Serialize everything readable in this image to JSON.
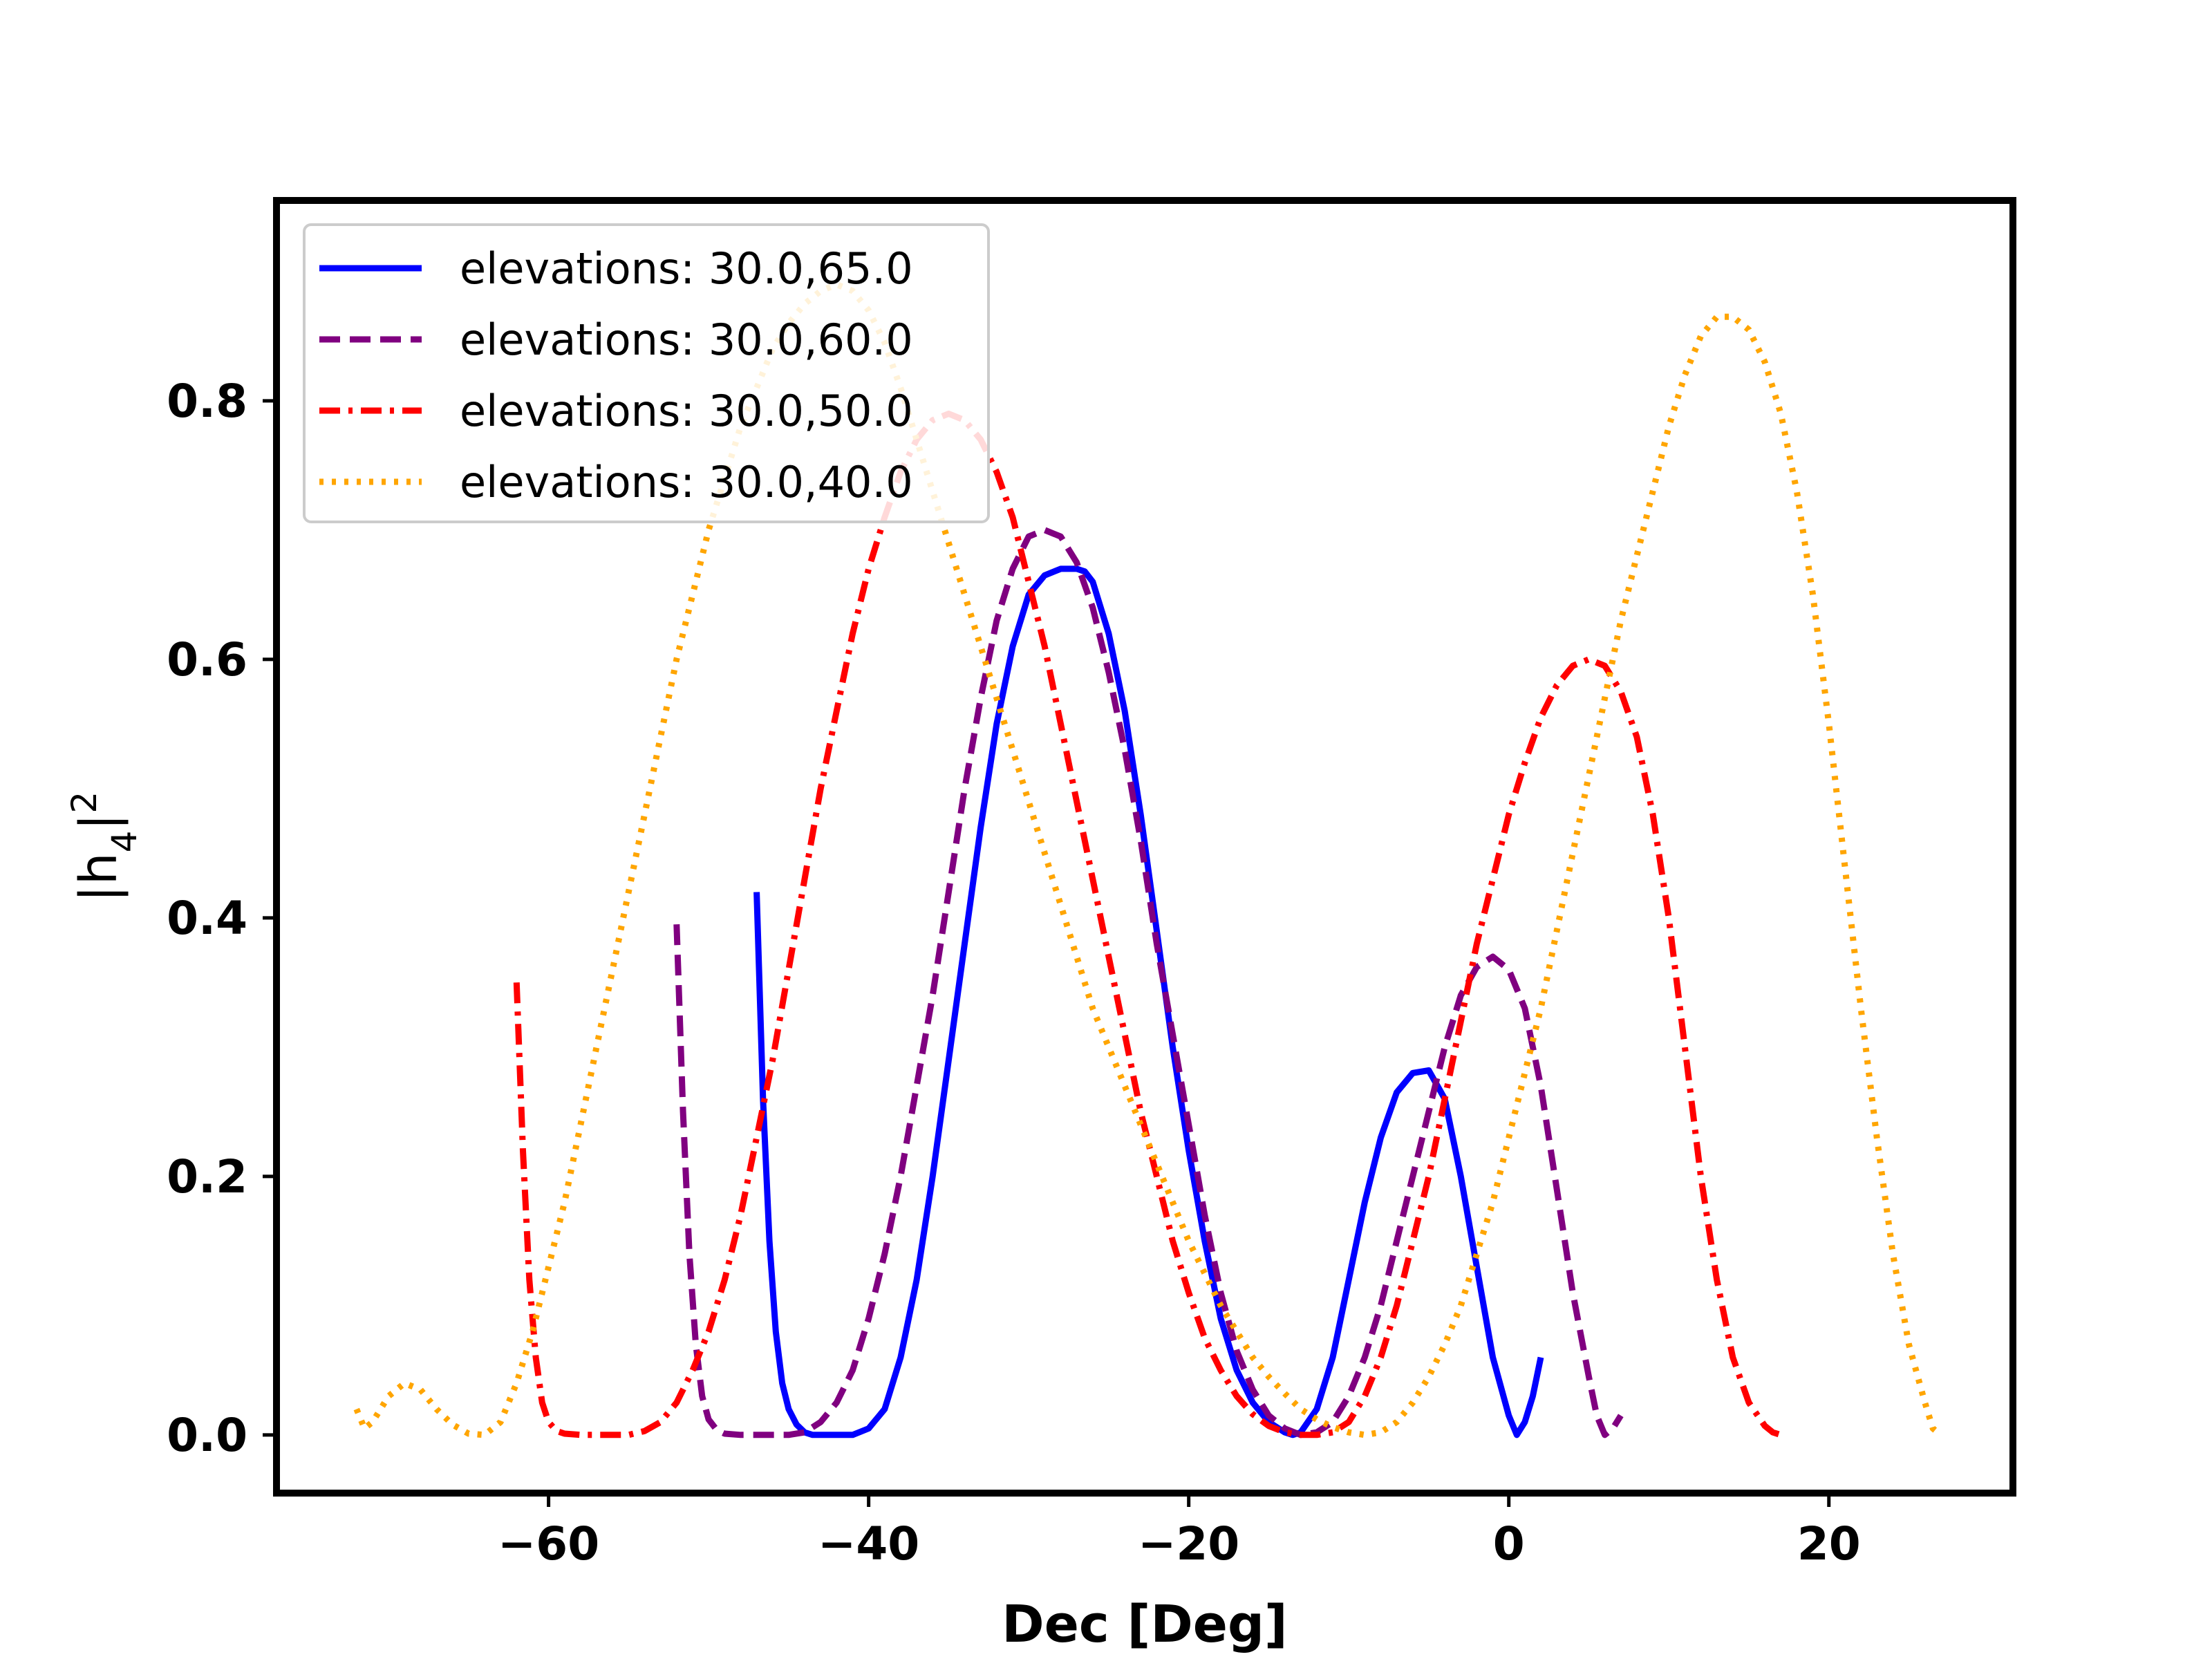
{
  "chart_data": {
    "type": "line",
    "title": "",
    "xlabel": "Dec [Deg]",
    "ylabel_base": "|h",
    "ylabel_sub": "4",
    "ylabel_sup": "2",
    "xlim": [
      -77,
      31.5
    ],
    "ylim": [
      -0.045,
      0.955
    ],
    "xticks": [
      -60,
      -40,
      -20,
      0,
      20
    ],
    "xtick_labels": [
      "−60",
      "−40",
      "−20",
      "0",
      "20"
    ],
    "yticks": [
      0.0,
      0.2,
      0.4,
      0.6,
      0.8
    ],
    "ytick_labels": [
      "0.0",
      "0.2",
      "0.4",
      "0.6",
      "0.8"
    ],
    "grid": false,
    "legend_position": "upper-left",
    "series": [
      {
        "name": "elevations: 30.0,65.0",
        "color": "#0000ff",
        "dash": "solid",
        "x": [
          -47,
          -46.6,
          -46.2,
          -45.8,
          -45.4,
          -45,
          -44.5,
          -44,
          -43.5,
          -42,
          -41,
          -40,
          -39,
          -38,
          -37,
          -36,
          -35,
          -34,
          -33,
          -32,
          -31,
          -30,
          -29,
          -28,
          -27,
          -26.5,
          -26,
          -25,
          -24,
          -23,
          -22,
          -21,
          -20,
          -19,
          -18,
          -17,
          -16,
          -15,
          -14,
          -13.5,
          -13,
          -12,
          -11,
          -10,
          -9,
          -8,
          -7,
          -6,
          -5,
          -4,
          -3,
          -2,
          -1,
          0,
          0.5,
          1,
          1.5,
          2
        ],
        "y": [
          0.42,
          0.26,
          0.15,
          0.08,
          0.04,
          0.02,
          0.008,
          0.002,
          0.0,
          0.0,
          0.0,
          0.005,
          0.02,
          0.06,
          0.12,
          0.2,
          0.29,
          0.38,
          0.47,
          0.55,
          0.61,
          0.65,
          0.665,
          0.67,
          0.67,
          0.668,
          0.66,
          0.62,
          0.56,
          0.48,
          0.39,
          0.3,
          0.22,
          0.15,
          0.09,
          0.05,
          0.025,
          0.01,
          0.002,
          0.0,
          0.002,
          0.02,
          0.06,
          0.12,
          0.18,
          0.23,
          0.265,
          0.28,
          0.282,
          0.26,
          0.2,
          0.13,
          0.06,
          0.015,
          0.0,
          0.01,
          0.03,
          0.06
        ]
      },
      {
        "name": "elevations: 30.0,60.0",
        "color": "#800080",
        "dash": "dashed",
        "x": [
          -52,
          -51.6,
          -51.2,
          -50.8,
          -50.4,
          -50,
          -49.5,
          -49,
          -48,
          -47,
          -46,
          -45,
          -44,
          -43,
          -42,
          -41,
          -40,
          -39,
          -38,
          -37,
          -36,
          -35,
          -34,
          -33,
          -32,
          -31,
          -30,
          -29,
          -28,
          -27,
          -26,
          -25,
          -24,
          -23,
          -22,
          -21,
          -20,
          -19,
          -18,
          -17,
          -16,
          -15,
          -14,
          -13,
          -12,
          -11,
          -10,
          -9,
          -8,
          -7,
          -6,
          -5,
          -4,
          -3,
          -2,
          -1,
          0,
          1,
          2,
          3,
          4,
          5,
          5.5,
          6,
          6.5,
          7
        ],
        "y": [
          0.395,
          0.25,
          0.14,
          0.07,
          0.03,
          0.012,
          0.004,
          0.001,
          0.0,
          0.0,
          0.0,
          0.0,
          0.002,
          0.01,
          0.025,
          0.05,
          0.09,
          0.14,
          0.2,
          0.27,
          0.34,
          0.42,
          0.5,
          0.57,
          0.63,
          0.67,
          0.695,
          0.7,
          0.695,
          0.675,
          0.64,
          0.59,
          0.53,
          0.46,
          0.38,
          0.31,
          0.24,
          0.17,
          0.11,
          0.065,
          0.035,
          0.015,
          0.005,
          0.0,
          0.002,
          0.01,
          0.03,
          0.06,
          0.1,
          0.15,
          0.2,
          0.25,
          0.3,
          0.34,
          0.362,
          0.37,
          0.36,
          0.33,
          0.27,
          0.19,
          0.11,
          0.045,
          0.015,
          0.0,
          0.005,
          0.015
        ]
      },
      {
        "name": "elevations: 30.0,50.0",
        "color": "#ff0000",
        "dash": "dashdot",
        "x": [
          -62,
          -61.6,
          -61.2,
          -60.8,
          -60.4,
          -60,
          -59.5,
          -59,
          -58,
          -57,
          -56,
          -55,
          -54,
          -53,
          -52,
          -51,
          -50,
          -49,
          -48,
          -47,
          -46,
          -45,
          -44,
          -43,
          -42,
          -41,
          -40,
          -39,
          -38,
          -37,
          -36,
          -35,
          -34,
          -33,
          -32,
          -31,
          -30,
          -29,
          -28,
          -27,
          -26,
          -25,
          -24,
          -23,
          -22,
          -21,
          -20,
          -19,
          -18,
          -17,
          -16,
          -15,
          -14,
          -13,
          -12,
          -11,
          -10,
          -9,
          -8,
          -7,
          -6,
          -5,
          -4,
          -3,
          -2,
          -1,
          0,
          1,
          2,
          3,
          4,
          5,
          6,
          7,
          8,
          9,
          10,
          11,
          12,
          13,
          14,
          15,
          16,
          16.5,
          17
        ],
        "y": [
          0.35,
          0.22,
          0.12,
          0.06,
          0.025,
          0.01,
          0.003,
          0.001,
          0.0,
          0.0,
          0.0,
          0.0,
          0.003,
          0.01,
          0.025,
          0.05,
          0.08,
          0.12,
          0.17,
          0.23,
          0.29,
          0.36,
          0.43,
          0.5,
          0.56,
          0.62,
          0.67,
          0.71,
          0.745,
          0.77,
          0.785,
          0.79,
          0.785,
          0.77,
          0.745,
          0.71,
          0.66,
          0.61,
          0.55,
          0.49,
          0.43,
          0.37,
          0.31,
          0.25,
          0.2,
          0.15,
          0.11,
          0.075,
          0.05,
          0.03,
          0.016,
          0.007,
          0.002,
          0.0,
          0.0,
          0.002,
          0.01,
          0.03,
          0.06,
          0.1,
          0.15,
          0.2,
          0.26,
          0.32,
          0.38,
          0.43,
          0.48,
          0.52,
          0.555,
          0.58,
          0.595,
          0.6,
          0.595,
          0.575,
          0.54,
          0.48,
          0.4,
          0.3,
          0.2,
          0.12,
          0.06,
          0.025,
          0.007,
          0.002,
          0.0
        ]
      },
      {
        "name": "elevations: 30.0,40.0",
        "color": "#ffa500",
        "dash": "dotted",
        "x": [
          -72,
          -71.5,
          -71,
          -70,
          -69,
          -68,
          -67,
          -66,
          -65,
          -64,
          -63,
          -62,
          -61,
          -60,
          -59,
          -58,
          -57,
          -56,
          -55,
          -54,
          -53,
          -52,
          -51,
          -50,
          -49,
          -48,
          -47,
          -46,
          -45,
          -44,
          -43,
          -42,
          -41,
          -40,
          -39,
          -38,
          -37,
          -36,
          -35,
          -34,
          -33,
          -32,
          -31,
          -30,
          -29,
          -28,
          -27,
          -26,
          -25,
          -24,
          -23,
          -22,
          -21,
          -20,
          -19,
          -18,
          -17,
          -16,
          -15,
          -14,
          -13,
          -12,
          -11,
          -10,
          -9,
          -8,
          -7,
          -6,
          -5,
          -4,
          -3,
          -2,
          -1,
          0,
          1,
          2,
          3,
          4,
          5,
          6,
          7,
          8,
          9,
          10,
          11,
          12,
          13,
          14,
          15,
          16,
          17,
          18,
          19,
          20,
          21,
          22,
          23,
          24,
          25,
          26,
          26.5,
          27
        ],
        "y": [
          0.02,
          0.005,
          0.01,
          0.03,
          0.04,
          0.035,
          0.02,
          0.008,
          0.001,
          0.0,
          0.01,
          0.04,
          0.08,
          0.13,
          0.18,
          0.24,
          0.3,
          0.36,
          0.42,
          0.48,
          0.54,
          0.6,
          0.65,
          0.7,
          0.74,
          0.78,
          0.81,
          0.84,
          0.86,
          0.875,
          0.885,
          0.89,
          0.885,
          0.87,
          0.845,
          0.81,
          0.77,
          0.73,
          0.69,
          0.65,
          0.61,
          0.57,
          0.53,
          0.49,
          0.45,
          0.41,
          0.37,
          0.33,
          0.3,
          0.27,
          0.24,
          0.21,
          0.18,
          0.15,
          0.125,
          0.1,
          0.08,
          0.06,
          0.045,
          0.032,
          0.02,
          0.012,
          0.006,
          0.002,
          0.0,
          0.002,
          0.01,
          0.025,
          0.045,
          0.07,
          0.1,
          0.14,
          0.18,
          0.23,
          0.28,
          0.33,
          0.39,
          0.45,
          0.51,
          0.57,
          0.63,
          0.68,
          0.73,
          0.78,
          0.82,
          0.85,
          0.865,
          0.865,
          0.855,
          0.83,
          0.79,
          0.73,
          0.65,
          0.55,
          0.44,
          0.33,
          0.23,
          0.14,
          0.07,
          0.025,
          0.005,
          0.0
        ]
      }
    ]
  }
}
